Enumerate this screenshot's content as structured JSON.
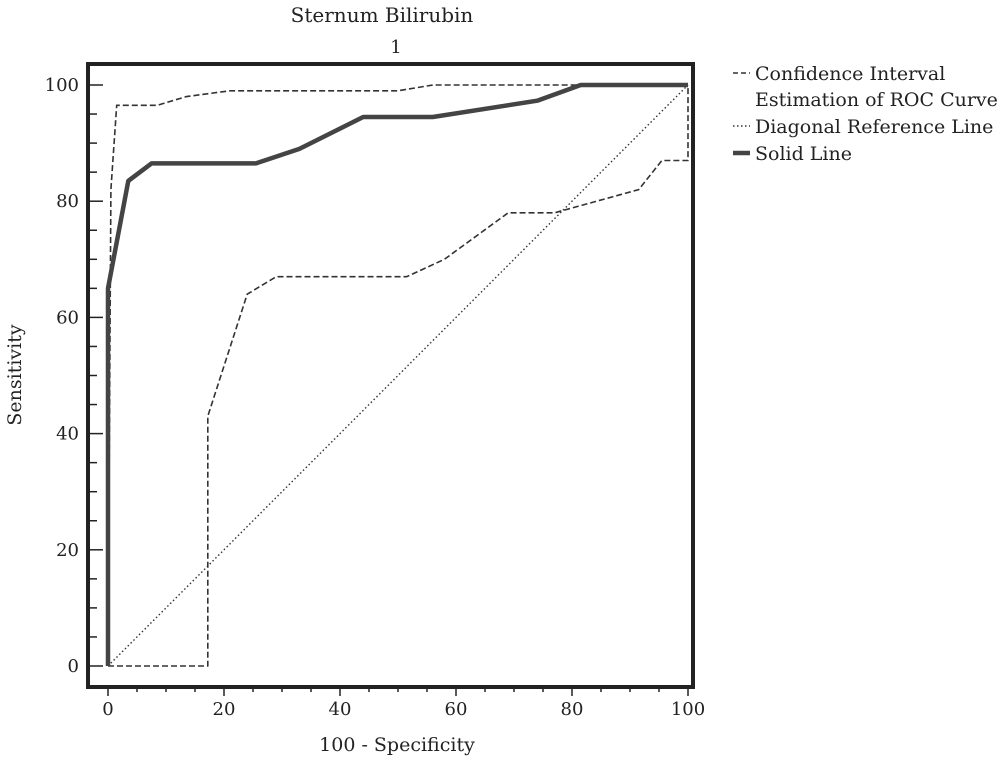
{
  "chart_data": {
    "type": "line",
    "title": "Sternum Bilirubin",
    "subtitle": "1",
    "xlabel": "100 - Specificity",
    "ylabel": "Sensitivity",
    "xlim": [
      0,
      100
    ],
    "ylim": [
      0,
      100
    ],
    "xticks": [
      0,
      20,
      40,
      60,
      80,
      100
    ],
    "yticks": [
      0,
      20,
      40,
      60,
      80,
      100
    ],
    "grid": false,
    "legend_position": "right",
    "series": [
      {
        "name": "Confidence Interval Estimation of ROC Curve",
        "style": "dashed",
        "x": [
          0,
          0.5,
          1.5,
          8.5,
          13.5,
          21,
          30,
          50,
          56,
          82,
          100
        ],
        "y": [
          0,
          82,
          96.5,
          96.5,
          98,
          99,
          99,
          99,
          100,
          100,
          100
        ]
      },
      {
        "name": "Confidence Interval Estimation of ROC Curve",
        "style": "dashed",
        "x": [
          0,
          17.2,
          17.2,
          24,
          29,
          51.5,
          58,
          69,
          77,
          91.5,
          95.5,
          100,
          100
        ],
        "y": [
          0,
          0,
          43,
          64,
          67,
          67,
          70,
          78,
          78,
          82,
          87,
          87,
          100
        ]
      },
      {
        "name": "Diagonal Reference Line",
        "style": "dotted",
        "x": [
          0,
          100
        ],
        "y": [
          0,
          100
        ]
      },
      {
        "name": "Solid Line",
        "style": "solid",
        "x": [
          0,
          0,
          3.5,
          7.5,
          25.5,
          33,
          44,
          56,
          74,
          81.5,
          100
        ],
        "y": [
          0,
          65,
          83.5,
          86.5,
          86.5,
          89,
          94.5,
          94.5,
          97.3,
          100,
          100
        ]
      }
    ]
  },
  "legend": [
    {
      "label": "Confidence Interval",
      "style": "dashed"
    },
    {
      "label": "Estimation of ROC Curve",
      "style": "none"
    },
    {
      "label": "Diagonal Reference Line",
      "style": "dotted"
    },
    {
      "label": "Solid Line",
      "style": "solid"
    }
  ]
}
